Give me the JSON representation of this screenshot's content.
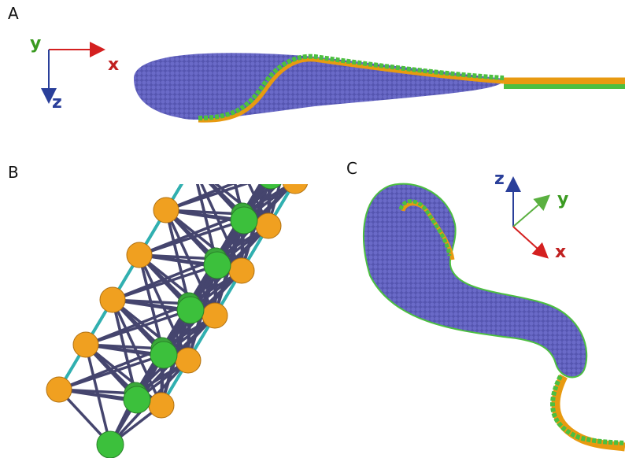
{
  "panels": [
    {
      "label": "A",
      "axes": {
        "x": "x",
        "y": "y",
        "z": "z"
      }
    },
    {
      "label": "B"
    },
    {
      "label": "C",
      "axes": {
        "x": "x",
        "y": "y",
        "z": "z"
      }
    }
  ]
}
